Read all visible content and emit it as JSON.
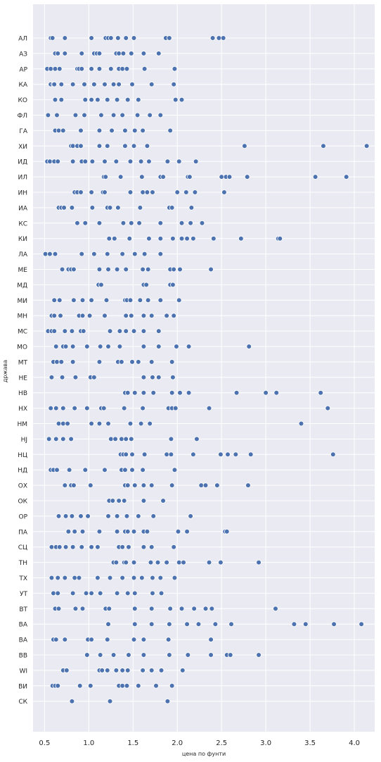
{
  "chart_data": {
    "type": "scatter",
    "xlabel": "цена по фунти",
    "ylabel": "држава",
    "xlim": [
      0.37,
      4.23
    ],
    "x_ticks": [
      "0.5",
      "1.0",
      "1.5",
      "2.0",
      "2.5",
      "3.0",
      "3.5",
      "4.0"
    ],
    "x_tick_values": [
      0.5,
      1.0,
      1.5,
      2.0,
      2.5,
      3.0,
      3.5,
      4.0
    ],
    "grid": true,
    "background": "#eaeaf2",
    "point_color": "#4c72b0",
    "point_edge": "#ffffff",
    "categories": [
      "АЛ",
      "АЗ",
      "АР",
      "КА",
      "КО",
      "ФЛ",
      "ГА",
      "ХИ",
      "ИД",
      "ИЛ",
      "ИН",
      "ИА",
      "КС",
      "КИ",
      "ЛА",
      "МЕ",
      "МД",
      "МИ",
      "МН",
      "МС",
      "МО",
      "МТ",
      "НЕ",
      "НВ",
      "НХ",
      "НМ",
      "НЈ",
      "НЦ",
      "НД",
      "ОХ",
      "ОК",
      "ОР",
      "ПА",
      "СЦ",
      "ТН",
      "ТХ",
      "УТ",
      "ВТ",
      "ВА",
      "ВА",
      "ВВ",
      "WI",
      "ВИ",
      "СК"
    ],
    "series": [
      {
        "category": "АЛ",
        "x": [
          0.57,
          0.59,
          0.73,
          1.03,
          1.19,
          1.22,
          1.25,
          1.33,
          1.42,
          1.51,
          1.87,
          1.91,
          2.4,
          2.47,
          2.52
        ]
      },
      {
        "category": "АЗ",
        "x": [
          0.62,
          0.65,
          0.73,
          0.92,
          1.06,
          1.09,
          1.12,
          1.31,
          1.34,
          1.39,
          1.48,
          1.62,
          1.79
        ]
      },
      {
        "category": "АР",
        "x": [
          0.53,
          0.57,
          0.62,
          0.67,
          0.87,
          0.89,
          0.92,
          1.03,
          1.12,
          1.25,
          1.34,
          1.38,
          1.43,
          1.63,
          1.97
        ]
      },
      {
        "category": "КА",
        "x": [
          0.57,
          0.6,
          0.61,
          0.69,
          0.82,
          0.95,
          1.06,
          1.18,
          1.28,
          1.34,
          1.49,
          1.71,
          1.96
        ]
      },
      {
        "category": "КО",
        "x": [
          0.62,
          0.69,
          0.96,
          1.03,
          1.1,
          1.21,
          1.32,
          1.44,
          1.56,
          1.98,
          2.05
        ]
      },
      {
        "category": "ФЛ",
        "x": [
          0.54,
          0.64,
          0.85,
          0.95,
          1.14,
          1.28,
          1.38,
          1.55,
          1.69,
          1.81
        ]
      },
      {
        "category": "ГА",
        "x": [
          0.62,
          0.66,
          0.71,
          0.91,
          1.12,
          1.26,
          1.41,
          1.52,
          1.61,
          1.92
        ]
      },
      {
        "category": "ХИ",
        "x": [
          0.8,
          0.82,
          0.87,
          0.91,
          1.12,
          1.21,
          1.41,
          1.51,
          1.66,
          2.76,
          3.65,
          4.14
        ]
      },
      {
        "category": "ИД",
        "x": [
          0.53,
          0.56,
          0.61,
          0.65,
          0.82,
          0.92,
          0.96,
          1.04,
          1.18,
          1.31,
          1.47,
          1.59,
          1.68,
          1.89,
          2.02,
          2.21
        ]
      },
      {
        "category": "ИЛ",
        "x": [
          1.17,
          1.19,
          1.36,
          1.6,
          1.81,
          1.84,
          2.12,
          2.14,
          2.5,
          2.55,
          2.59,
          2.79,
          3.56,
          3.91
        ]
      },
      {
        "category": "ИН",
        "x": [
          0.84,
          0.87,
          0.91,
          1.03,
          1.16,
          1.18,
          1.47,
          1.61,
          1.66,
          1.72,
          2.0,
          2.1,
          2.2,
          2.53
        ]
      },
      {
        "category": "ИА",
        "x": [
          0.66,
          0.69,
          0.72,
          0.81,
          1.04,
          1.21,
          1.24,
          1.33,
          1.58,
          1.91,
          1.94,
          2.16
        ]
      },
      {
        "category": "КС",
        "x": [
          0.87,
          0.96,
          1.12,
          1.39,
          1.48,
          1.57,
          1.81,
          2.05,
          2.15,
          2.28
        ]
      },
      {
        "category": "КИ",
        "x": [
          1.23,
          1.29,
          1.46,
          1.68,
          1.81,
          1.95,
          2.05,
          2.11,
          2.18,
          2.41,
          2.72,
          3.14,
          3.16
        ]
      },
      {
        "category": "ЛА",
        "x": [
          0.51,
          0.56,
          0.62,
          0.92,
          1.06,
          1.21,
          1.38,
          1.52,
          1.63,
          1.81
        ]
      },
      {
        "category": "МЕ",
        "x": [
          0.7,
          0.77,
          0.8,
          0.83,
          1.12,
          1.22,
          1.32,
          1.42,
          1.61,
          1.67,
          1.92,
          1.96,
          2.03,
          2.38
        ]
      },
      {
        "category": "МД",
        "x": [
          1.11,
          1.14,
          1.62,
          1.65,
          1.92,
          1.95
        ]
      },
      {
        "category": "МИ",
        "x": [
          0.61,
          0.67,
          0.83,
          0.93,
          1.03,
          1.2,
          1.41,
          1.43,
          1.47,
          1.58,
          1.67,
          1.81,
          2.02
        ]
      },
      {
        "category": "МН",
        "x": [
          0.58,
          0.61,
          0.68,
          0.89,
          0.93,
          1.01,
          1.18,
          1.42,
          1.48,
          1.62,
          1.71,
          1.88,
          1.96
        ]
      },
      {
        "category": "МС",
        "x": [
          0.54,
          0.58,
          0.61,
          0.73,
          0.81,
          0.91,
          0.94,
          1.24,
          1.35,
          1.42,
          1.51,
          1.62,
          1.79
        ]
      },
      {
        "category": "МО",
        "x": [
          0.63,
          0.71,
          0.74,
          0.82,
          0.98,
          1.13,
          1.22,
          1.35,
          1.62,
          1.79,
          1.99,
          2.13,
          2.81
        ]
      },
      {
        "category": "МТ",
        "x": [
          0.6,
          0.64,
          0.69,
          0.82,
          1.12,
          1.33,
          1.37,
          1.49,
          1.56,
          1.71,
          1.94
        ]
      },
      {
        "category": "НЕ",
        "x": [
          0.58,
          0.7,
          0.85,
          1.02,
          1.06,
          1.62,
          1.72,
          1.79,
          1.95
        ]
      },
      {
        "category": "НВ",
        "x": [
          1.41,
          1.44,
          1.52,
          1.62,
          1.73,
          1.94,
          2.03,
          2.13,
          2.67,
          3.0,
          3.12,
          3.62
        ]
      },
      {
        "category": "НХ",
        "x": [
          0.57,
          0.63,
          0.71,
          0.84,
          0.98,
          1.14,
          1.17,
          1.4,
          1.61,
          1.9,
          1.94,
          1.98,
          2.36,
          3.7
        ]
      },
      {
        "category": "НМ",
        "x": [
          0.66,
          0.71,
          0.76,
          1.03,
          1.12,
          1.22,
          1.47,
          1.59,
          1.69,
          3.4
        ]
      },
      {
        "category": "НЈ",
        "x": [
          0.55,
          0.63,
          0.71,
          0.8,
          1.25,
          1.3,
          1.37,
          1.42,
          1.48,
          1.93,
          2.22
        ]
      },
      {
        "category": "НЦ",
        "x": [
          1.36,
          1.39,
          1.42,
          1.49,
          1.63,
          1.88,
          1.93,
          2.18,
          2.49,
          2.57,
          2.66,
          2.83,
          3.76
        ]
      },
      {
        "category": "НД",
        "x": [
          0.57,
          0.6,
          0.64,
          0.78,
          0.96,
          1.18,
          1.37,
          1.41,
          1.49,
          1.61,
          1.97
        ]
      },
      {
        "category": "ОХ",
        "x": [
          0.73,
          0.8,
          0.83,
          1.02,
          1.41,
          1.44,
          1.52,
          1.62,
          1.71,
          1.94,
          2.27,
          2.32,
          2.45,
          2.8
        ]
      },
      {
        "category": "ОК",
        "x": [
          1.23,
          1.27,
          1.34,
          1.4,
          1.62,
          1.84
        ]
      },
      {
        "category": "ОР",
        "x": [
          0.66,
          0.74,
          0.81,
          0.91,
          0.99,
          1.22,
          1.32,
          1.43,
          1.56,
          1.73,
          2.15
        ]
      },
      {
        "category": "ПА",
        "x": [
          0.77,
          0.84,
          0.93,
          1.12,
          1.32,
          1.41,
          1.44,
          1.51,
          1.62,
          1.66,
          2.01,
          2.11,
          2.54,
          2.56
        ]
      },
      {
        "category": "СЦ",
        "x": [
          0.58,
          0.63,
          0.67,
          0.74,
          0.82,
          0.92,
          1.03,
          1.1,
          1.34,
          1.38,
          1.45,
          1.62,
          1.71,
          1.96
        ]
      },
      {
        "category": "ТН",
        "x": [
          1.28,
          1.31,
          1.4,
          1.42,
          1.51,
          1.7,
          1.78,
          1.88,
          2.02,
          2.07,
          2.36,
          2.49,
          2.92
        ]
      },
      {
        "category": "ТХ",
        "x": [
          0.58,
          0.65,
          0.73,
          0.84,
          0.89,
          1.1,
          1.24,
          1.38,
          1.51,
          1.6,
          1.72,
          1.81,
          1.97
        ]
      },
      {
        "category": "УТ",
        "x": [
          0.6,
          0.65,
          0.82,
          0.97,
          1.03,
          1.13,
          1.32,
          1.44,
          1.52,
          1.72,
          1.82
        ]
      },
      {
        "category": "ВТ",
        "x": [
          0.62,
          0.66,
          0.85,
          0.93,
          1.19,
          1.23,
          1.52,
          1.71,
          1.92,
          2.05,
          2.19,
          2.32,
          2.39,
          3.11
        ]
      },
      {
        "category": "ВА",
        "x": [
          1.22,
          1.52,
          1.71,
          1.91,
          2.11,
          2.24,
          2.43,
          2.61,
          3.32,
          3.45,
          3.77,
          4.08
        ]
      },
      {
        "category": "ВА",
        "x": [
          0.6,
          0.63,
          0.73,
          0.99,
          1.03,
          1.21,
          1.51,
          1.62,
          1.9,
          2.38
        ]
      },
      {
        "category": "ВВ",
        "x": [
          0.98,
          1.13,
          1.28,
          1.45,
          1.62,
          1.91,
          2.12,
          2.38,
          2.56,
          2.6,
          2.92
        ]
      },
      {
        "category": "WI",
        "x": [
          0.71,
          0.75,
          1.12,
          1.15,
          1.21,
          1.31,
          1.38,
          1.44,
          1.61,
          1.71,
          1.82,
          2.06
        ]
      },
      {
        "category": "ВИ",
        "x": [
          0.59,
          0.62,
          0.65,
          0.9,
          1.02,
          1.34,
          1.38,
          1.43,
          1.56,
          1.76,
          1.94
        ]
      },
      {
        "category": "СК",
        "x": [
          0.81,
          1.24,
          1.89
        ]
      }
    ]
  }
}
